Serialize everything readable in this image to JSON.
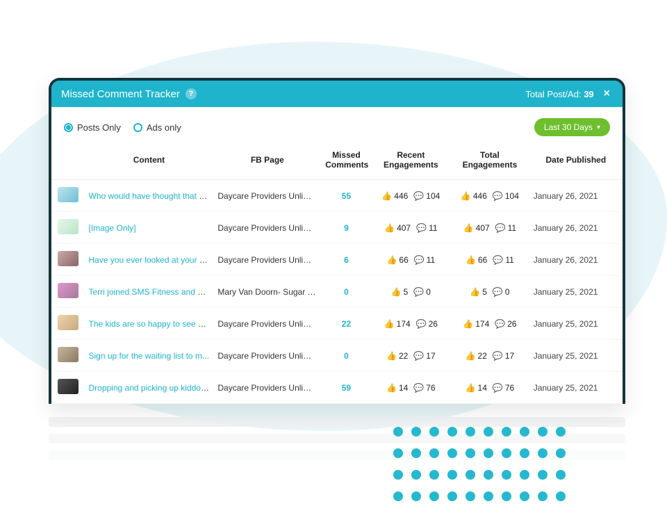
{
  "decor": {
    "blob_color": "#e7f5f8",
    "white_dot_color": "#ffffff",
    "teal_dot_color": "#26b8ce"
  },
  "panel": {
    "border_color": "#14343d",
    "bg": "#ffffff"
  },
  "titlebar": {
    "bg": "#1fb4cc",
    "title": "Missed Comment Tracker",
    "help_symbol": "?",
    "total_label": "Total Post/Ad:",
    "total_value": "39",
    "close_symbol": "×"
  },
  "filters": {
    "posts_label": "Posts Only",
    "ads_label": "Ads only",
    "selected": "posts",
    "range_label": "Last 30 Days"
  },
  "table": {
    "columns": {
      "content": "Content",
      "page": "FB Page",
      "missed": "Missed Comments",
      "recent": "Recent Engagements",
      "total": "Total Engagements",
      "date": "Date Published"
    },
    "rows": [
      {
        "thumb_css": "linear-gradient(135deg,#bfe3ec,#6dc0d6)",
        "content": "Who would have thought that a...",
        "page": "Daycare Providers Unlimit...",
        "missed": "55",
        "recent_likes": "446",
        "recent_comments": "104",
        "total_likes": "446",
        "total_comments": "104",
        "date": "January 26, 2021"
      },
      {
        "thumb_css": "linear-gradient(135deg,#e6f6ea,#b9e6c7)",
        "content": "[Image Only]",
        "page": "Daycare Providers Unlimit...",
        "missed": "9",
        "recent_likes": "407",
        "recent_comments": "11",
        "total_likes": "407",
        "total_comments": "11",
        "date": "January 26, 2021"
      },
      {
        "thumb_css": "linear-gradient(135deg,#caa,#866)",
        "content": "Have you ever looked at your al...",
        "page": "Daycare Providers Unlimit...",
        "missed": "6",
        "recent_likes": "66",
        "recent_comments": "11",
        "total_likes": "66",
        "total_comments": "11",
        "date": "January 26, 2021"
      },
      {
        "thumb_css": "linear-gradient(135deg,#d9c,#a79)",
        "content": "Terri joined SMS Fitness and W...",
        "page": "Mary Van Doorn- Sugar M...",
        "missed": "0",
        "recent_likes": "5",
        "recent_comments": "0",
        "total_likes": "5",
        "total_comments": "0",
        "date": "January 25, 2021"
      },
      {
        "thumb_css": "linear-gradient(135deg,#edd3b0,#c9a97a)",
        "content": "The kids are so happy to see ea...",
        "page": "Daycare Providers Unlimit...",
        "missed": "22",
        "recent_likes": "174",
        "recent_comments": "26",
        "total_likes": "174",
        "total_comments": "26",
        "date": "January 25, 2021"
      },
      {
        "thumb_css": "linear-gradient(135deg,#c7b5a0,#8a7860)",
        "content": "Sign up for the waiting list to m...",
        "page": "Daycare Providers Unlimit...",
        "missed": "0",
        "recent_likes": "22",
        "recent_comments": "17",
        "total_likes": "22",
        "total_comments": "17",
        "date": "January 25, 2021"
      },
      {
        "thumb_css": "linear-gradient(135deg,#555,#222)",
        "content": "Dropping and picking up kiddos...",
        "page": "Daycare Providers Unlimit...",
        "missed": "59",
        "recent_likes": "14",
        "recent_comments": "76",
        "total_likes": "14",
        "total_comments": "76",
        "date": "January 25, 2021"
      }
    ]
  },
  "icons": {
    "like": "👍",
    "comment": "💬",
    "caret": "▾"
  },
  "colors": {
    "link": "#1fb4cc",
    "pill_bg": "#6dbf2d",
    "header_text": "#222222",
    "body_text": "#333333"
  }
}
